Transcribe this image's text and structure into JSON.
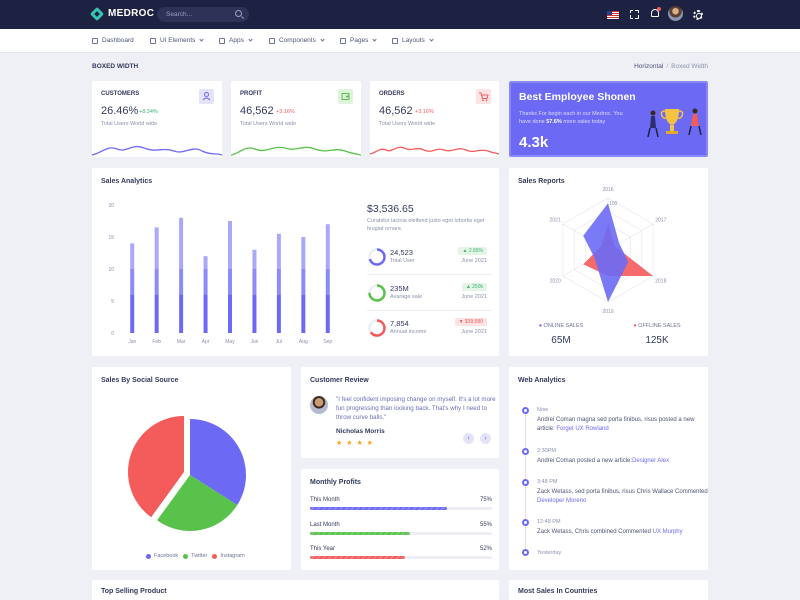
{
  "header": {
    "brand": "MEDROC",
    "search_placeholder": "Search...",
    "icons": [
      "search-icon",
      "flag-icon",
      "fullscreen-icon",
      "bell-icon",
      "avatar",
      "gear-icon"
    ]
  },
  "menu": [
    {
      "label": "Dashboard",
      "icon": "home-icon",
      "caret": false
    },
    {
      "label": "UI Elements",
      "icon": "layers-icon",
      "caret": true
    },
    {
      "label": "Apps",
      "icon": "grid-icon",
      "caret": true
    },
    {
      "label": "Components",
      "icon": "package-icon",
      "caret": true
    },
    {
      "label": "Pages",
      "icon": "file-icon",
      "caret": true
    },
    {
      "label": "Layouts",
      "icon": "layout-icon",
      "caret": true
    }
  ],
  "page": {
    "title": "BOXED WIDTH",
    "crumb_1": "Horizontal",
    "crumb_2": "Boxed Width"
  },
  "stats": [
    {
      "label": "CUSTOMERS",
      "value": "26.46%",
      "delta": "+8.34%",
      "delta_color": "#3cb371",
      "subtitle": "Total Users World wide",
      "icon": "user-icon",
      "accent": "#6c6af5",
      "icon_bg": "#e4e3fb"
    },
    {
      "label": "PROFIT",
      "value": "46,562",
      "delta": "+3.16%",
      "delta_color": "#f45b5b",
      "subtitle": "Total Users World wide",
      "icon": "wallet-icon",
      "accent": "#58c24a",
      "icon_bg": "#dff3dc"
    },
    {
      "label": "ORDERS",
      "value": "46,562",
      "delta": "+3.16%",
      "delta_color": "#f45b5b",
      "subtitle": "Total Users World wide",
      "icon": "cart-icon",
      "accent": "#f45b5b",
      "icon_bg": "#fde3e3"
    }
  ],
  "best_employee": {
    "title": "Best Employee Shonen",
    "text_pre": "Thanks For begin each in our Medroc. You have done ",
    "text_bold": "57.6%",
    "text_post": " more sales today",
    "value": "4.3k"
  },
  "sales_analytics": {
    "title": "Sales Analytics",
    "amount": "$3,536.65",
    "description": "Curabitur lacinia eleifend justo eget lobortis eget feugiat ornare.",
    "kpis": [
      {
        "value": "24,523",
        "label": "Total User",
        "badge": "2.65%",
        "badge_dir": "up",
        "badge_color": "#3cb371",
        "badge_bg": "#e2f5e7",
        "date": "June 2021",
        "ring_color": "#6c6af5",
        "ring_pct": 0.7
      },
      {
        "value": "235M",
        "label": "Avarage sale",
        "badge": "250k",
        "badge_dir": "up",
        "badge_color": "#3cb371",
        "badge_bg": "#e2f5e7",
        "date": "June 2021",
        "ring_color": "#58c24a",
        "ring_pct": 0.75
      },
      {
        "value": "7,854",
        "label": "Annual income",
        "badge": "$39,580",
        "badge_dir": "down",
        "badge_color": "#f45b5b",
        "badge_bg": "#fde3e3",
        "date": "June 2021",
        "ring_color": "#f45b5b",
        "ring_pct": 0.65
      }
    ]
  },
  "sales_reports": {
    "title": "Sales Reports",
    "online_label": "ONLINE SALES",
    "online_value": "65M",
    "online_color": "#6c6af5",
    "offline_label": "OFFLINE SALES",
    "offline_value": "125K",
    "offline_color": "#f45b5b"
  },
  "social": {
    "title": "Sales By Social Source",
    "legend": [
      {
        "name": "Facebook",
        "color": "#6c6af5"
      },
      {
        "name": "Twitter",
        "color": "#58c24a"
      },
      {
        "name": "Instagram",
        "color": "#f45b5b"
      }
    ]
  },
  "review": {
    "title": "Customer Review",
    "text": "\"I feel confident imposing change on myself. It's a lot more fun progressing than looking back. That's why I need to throw curve balls.\"",
    "name": "Nicholas Morris",
    "stars": "★ ★ ★ ★",
    "prev": "‹",
    "next": "›"
  },
  "monthly_profits": {
    "title": "Monthly Profits",
    "rows": [
      {
        "label": "This Month",
        "value": "75%",
        "fraction": 0.75,
        "color": "#6c6af5"
      },
      {
        "label": "Last Month",
        "value": "55%",
        "fraction": 0.55,
        "color": "#58c24a"
      },
      {
        "label": "This Year",
        "value": "52%",
        "fraction": 0.52,
        "color": "#f45b5b"
      }
    ]
  },
  "web_analytics": {
    "title": "Web Analytics",
    "items": [
      {
        "time": "Now",
        "text": "Andrei Coman magna sed porta finibus, risus posted a new article:",
        "link": "Forget UX Rowland"
      },
      {
        "time": "2:30PM",
        "text": "Andrei Coman posted a new article:",
        "link": "Designer Alex"
      },
      {
        "time": "3:48 PM",
        "text": "Zack Wetass, sed porta finibus, risus Chris Wallace Commented",
        "link": "Developer Moreno"
      },
      {
        "time": "12:48 PM",
        "text": "Zack Wetass, Chris combined Commented",
        "link": "UX Murphy"
      },
      {
        "time": "Yesterday",
        "text": "",
        "link": ""
      }
    ]
  },
  "bottom": {
    "top_selling": "Top Selling Product",
    "most_sales": "Most Sales In Countries"
  },
  "chart_data": [
    {
      "type": "bar",
      "title": "Sales Analytics",
      "categories": [
        "Jan",
        "Feb",
        "Mar",
        "Apr",
        "May",
        "Jun",
        "Jul",
        "Aug",
        "Sep"
      ],
      "ylim": [
        0,
        20
      ],
      "yticks": [
        0,
        5,
        10,
        15,
        20
      ],
      "series": [
        {
          "values": [
            6,
            6,
            6,
            6,
            6,
            6,
            6,
            6,
            6
          ],
          "color": "#6c6af5"
        },
        {
          "values": [
            4,
            4,
            4,
            4,
            4,
            4,
            4,
            4,
            4
          ],
          "color": "#8d8bf7"
        },
        {
          "values": [
            4,
            6.5,
            8,
            2,
            7.5,
            3,
            5.5,
            5,
            7
          ],
          "color": "#a9a8f9"
        }
      ]
    },
    {
      "type": "radar",
      "title": "Sales Reports",
      "categories": [
        "2016",
        "2017",
        "2018",
        "2019",
        "2020",
        "2021"
      ],
      "range_outer": "100",
      "series": [
        {
          "name": "ONLINE SALES",
          "values": [
            90,
            25,
            45,
            100,
            30,
            55
          ],
          "color": "#6c6af5"
        },
        {
          "name": "OFFLINE SALES",
          "values": [
            50,
            15,
            100,
            50,
            55,
            15
          ],
          "color": "#f45b5b"
        }
      ]
    },
    {
      "type": "pie",
      "title": "Sales By Social Source",
      "categories": [
        "Facebook",
        "Twitter",
        "Instagram"
      ],
      "values": [
        34,
        26,
        40
      ]
    }
  ]
}
